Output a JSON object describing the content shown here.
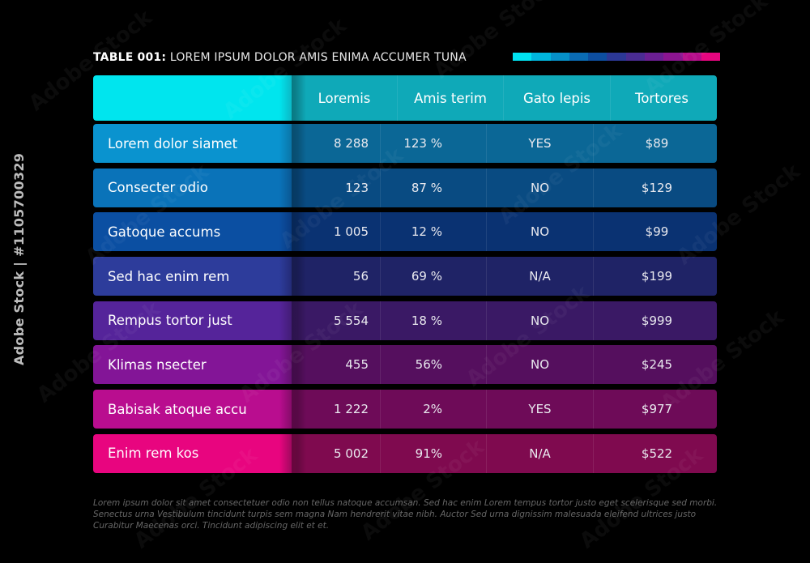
{
  "title": {
    "bold": "TABLE 001:",
    "rest": "LOREM IPSUM DOLOR AMIS ENIMA ACCUMER TUNA"
  },
  "swatch_colors": [
    "#00e2f0",
    "#00b6dd",
    "#0690c8",
    "#0a6bb3",
    "#0d4ea0",
    "#2c3896",
    "#4a2c92",
    "#6b1f93",
    "#8c1591",
    "#b60c8a",
    "#e60680"
  ],
  "header": {
    "columns": [
      "Loremis",
      "Amis terim",
      "Gato lepis",
      "Tortores"
    ],
    "colors": [
      "#00e5ee",
      "#0fa9b8"
    ]
  },
  "rows": [
    {
      "label": "Lorem dolor siamet",
      "values": [
        "8 288",
        "123 %",
        "YES",
        "$89"
      ],
      "colors": [
        "#0a93cf",
        "#0b6796"
      ]
    },
    {
      "label": "Consecter odio",
      "values": [
        "123",
        "87 %",
        "NO",
        "$129"
      ],
      "colors": [
        "#0a73b9",
        "#094b82"
      ]
    },
    {
      "label": "Gatoque accums",
      "values": [
        "1 005",
        "12 %",
        "NO",
        "$99"
      ],
      "colors": [
        "#0b4fa2",
        "#0a3272"
      ]
    },
    {
      "label": "Sed hac enim rem",
      "values": [
        "56",
        "69 %",
        "N/A",
        "$199"
      ],
      "colors": [
        "#2d3c9b",
        "#1f2366"
      ]
    },
    {
      "label": "Rempus tortor just",
      "values": [
        "5 554",
        "18 %",
        "NO",
        "$999"
      ],
      "colors": [
        "#55249a",
        "#3a1965"
      ]
    },
    {
      "label": "Klimas nsecter",
      "values": [
        "455",
        "56%",
        "NO",
        "$245"
      ],
      "colors": [
        "#831597",
        "#550f5e"
      ]
    },
    {
      "label": "Babisak atoque accu",
      "values": [
        "1 222",
        "2%",
        "YES",
        "$977"
      ],
      "colors": [
        "#b90d8f",
        "#6e0b58"
      ]
    },
    {
      "label": "Enim rem kos",
      "values": [
        "5 002",
        "91%",
        "N/A",
        "$522"
      ],
      "colors": [
        "#e8057f",
        "#7f0a4f"
      ]
    }
  ],
  "footnote": "Lorem ipsum dolor sit amet consectetuer odio non tellus natoque accumsan. Sed hac enim Lorem tempus tortor justo eget scelerisque sed morbi. Senectus urna Vestibulum tincidunt turpis sem magna Nam hendrerit vitae nibh. Auctor Sed urna dignissim malesuada eleifend ultrices justo Curabitur Maecenas orci. Tincidunt adipiscing elit et et.",
  "stock_id": "Adobe Stock | #1105700329",
  "watermark": "Adobe Stock"
}
